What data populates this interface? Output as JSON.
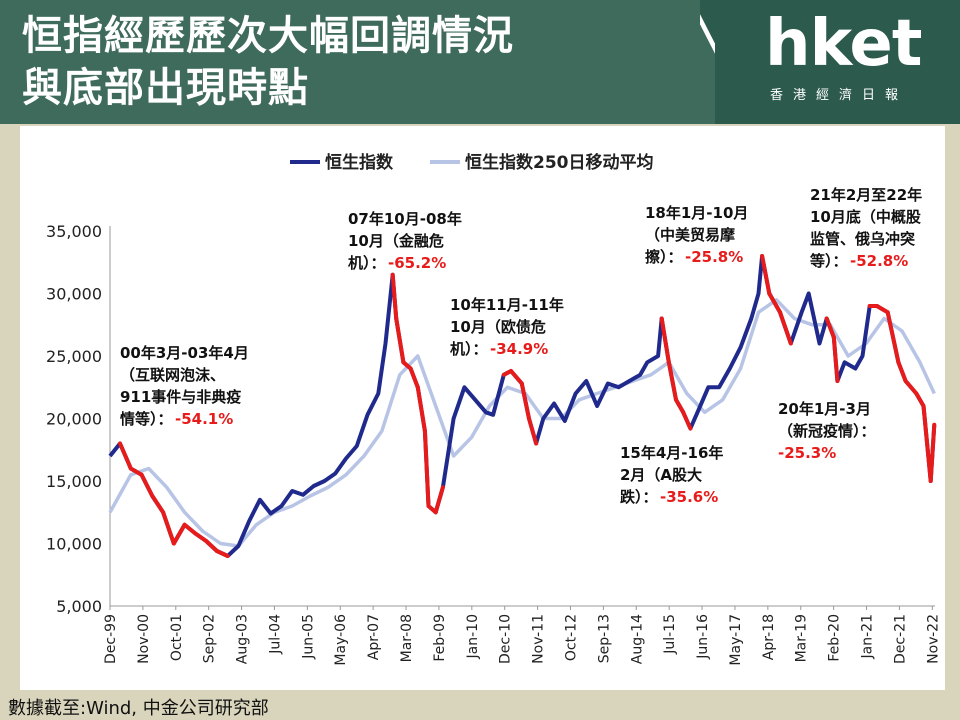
{
  "header": {
    "title_line1": "恒指經歷歷次大幅回調情況",
    "title_line2": "與底部出現時點",
    "logo_text": "hket",
    "logo_sub": "香港經濟日報"
  },
  "source": "數據截至:Wind, 中金公司研究部",
  "colors": {
    "header_bg": "#3f6b5d",
    "logo_bg": "#2c5a4c",
    "index_line": "#1f2a8c",
    "drawdown_line": "#e81b1b",
    "ma_line": "#b7c4e6",
    "annotation_red": "#e81b1b"
  },
  "chart_data": {
    "type": "line",
    "legend": [
      "恒生指数",
      "恒生指数250日移动平均"
    ],
    "ylim": [
      5000,
      35000
    ],
    "y_ticks": [
      "5,000",
      "10,000",
      "15,000",
      "20,000",
      "25,000",
      "30,000",
      "35,000"
    ],
    "x_ticks": [
      "Dec-99",
      "Nov-00",
      "Oct-01",
      "Sep-02",
      "Aug-03",
      "Jul-04",
      "Jun-05",
      "May-06",
      "Apr-07",
      "Mar-08",
      "Feb-09",
      "Jan-10",
      "Dec-10",
      "Nov-11",
      "Oct-12",
      "Sep-13",
      "Aug-14",
      "Jul-15",
      "Jun-16",
      "May-17",
      "Apr-18",
      "Mar-19",
      "Feb-20",
      "Jan-21",
      "Dec-21",
      "Nov-22"
    ],
    "series": [
      {
        "name": "恒生指数",
        "x": [
          1999.92,
          2000.2,
          2000.5,
          2000.8,
          2001.1,
          2001.4,
          2001.7,
          2002.0,
          2002.3,
          2002.6,
          2002.9,
          2003.2,
          2003.5,
          2003.8,
          2004.1,
          2004.4,
          2004.7,
          2005.0,
          2005.3,
          2005.6,
          2005.9,
          2006.2,
          2006.5,
          2006.8,
          2007.1,
          2007.4,
          2007.6,
          2007.8,
          2007.9,
          2008.1,
          2008.3,
          2008.5,
          2008.7,
          2008.8,
          2009.0,
          2009.2,
          2009.5,
          2009.8,
          2010.1,
          2010.4,
          2010.6,
          2010.9,
          2011.1,
          2011.4,
          2011.6,
          2011.8,
          2012.0,
          2012.3,
          2012.6,
          2012.9,
          2013.2,
          2013.5,
          2013.8,
          2014.1,
          2014.4,
          2014.7,
          2014.9,
          2015.2,
          2015.3,
          2015.5,
          2015.7,
          2015.9,
          2016.1,
          2016.3,
          2016.6,
          2016.9,
          2017.2,
          2017.5,
          2017.8,
          2018.0,
          2018.1,
          2018.3,
          2018.6,
          2018.9,
          2019.2,
          2019.4,
          2019.7,
          2019.9,
          2020.1,
          2020.2,
          2020.4,
          2020.7,
          2020.9,
          2021.1,
          2021.3,
          2021.6,
          2021.9,
          2022.1,
          2022.4,
          2022.6,
          2022.8,
          2022.9
        ],
        "y": [
          17000,
          18000,
          16000,
          15500,
          13800,
          12500,
          10000,
          11500,
          10800,
          10200,
          9400,
          9000,
          9800,
          11800,
          13500,
          12400,
          13000,
          14200,
          13900,
          14600,
          15000,
          15600,
          16800,
          17800,
          20300,
          22000,
          26000,
          31500,
          28000,
          24500,
          24000,
          22500,
          19000,
          13000,
          12500,
          14500,
          20000,
          22500,
          21500,
          20500,
          20300,
          23500,
          23800,
          22800,
          20000,
          18000,
          20000,
          21200,
          19800,
          22000,
          23000,
          21000,
          22800,
          22500,
          23000,
          23500,
          24500,
          25000,
          28000,
          24500,
          21500,
          20500,
          19200,
          20500,
          22500,
          22500,
          24000,
          25700,
          28000,
          30000,
          33000,
          30000,
          28500,
          26000,
          28500,
          30000,
          26000,
          28000,
          26500,
          23000,
          24500,
          24000,
          25000,
          29000,
          29000,
          28500,
          24500,
          23000,
          22000,
          21000,
          15000,
          19500
        ],
        "drawdown_periods": [
          [
            2000.2,
            2003.3
          ],
          [
            2007.8,
            2009.2
          ],
          [
            2010.8,
            2011.8
          ],
          [
            2015.3,
            2016.1
          ],
          [
            2018.1,
            2018.8
          ],
          [
            2020.0,
            2020.2
          ],
          [
            2021.1,
            2022.9
          ]
        ]
      },
      {
        "name": "恒生指数250日移动平均",
        "x": [
          1999.92,
          2000.5,
          2001.0,
          2001.5,
          2002.0,
          2002.5,
          2003.0,
          2003.5,
          2004.0,
          2004.5,
          2005.0,
          2005.5,
          2006.0,
          2006.5,
          2007.0,
          2007.5,
          2008.0,
          2008.5,
          2009.0,
          2009.5,
          2010.0,
          2010.5,
          2011.0,
          2011.5,
          2012.0,
          2012.5,
          2013.0,
          2013.5,
          2014.0,
          2014.5,
          2015.0,
          2015.5,
          2016.0,
          2016.5,
          2017.0,
          2017.5,
          2018.0,
          2018.5,
          2019.0,
          2019.5,
          2020.0,
          2020.5,
          2021.0,
          2021.5,
          2022.0,
          2022.5,
          2022.9
        ],
        "y": [
          12500,
          15500,
          16000,
          14500,
          12500,
          11000,
          10000,
          9800,
          11500,
          12500,
          13000,
          13800,
          14500,
          15500,
          17000,
          19000,
          23500,
          25000,
          21000,
          17000,
          18500,
          21000,
          22500,
          22000,
          20000,
          20000,
          21500,
          22000,
          22500,
          23000,
          23500,
          24500,
          22000,
          20500,
          21500,
          24000,
          28500,
          29500,
          28000,
          27500,
          27500,
          25000,
          26000,
          28000,
          27000,
          24500,
          22000
        ]
      }
    ],
    "annotations": [
      {
        "lines": [
          "00年3月-03年4月",
          "（互联网泡沫、",
          "911事件与非典疫",
          "情等）："
        ],
        "value": "-54.1%"
      },
      {
        "lines": [
          "07年10月-08年",
          "10月（金融危",
          "机）："
        ],
        "value": "-65.2%"
      },
      {
        "lines": [
          "10年11月-11年",
          "10月（欧债危",
          "机）："
        ],
        "value": "-34.9%"
      },
      {
        "lines": [
          "15年4月-16年",
          "2月（A股大",
          "跌）："
        ],
        "value": "-35.6%"
      },
      {
        "lines": [
          "18年1月-10月",
          "（中美贸易摩",
          "擦）："
        ],
        "value": "-25.8%"
      },
      {
        "lines": [
          "20年1月-3月",
          "（新冠疫情）："
        ],
        "value": "-25.3%"
      },
      {
        "lines": [
          "21年2月至22年",
          "10月底（中概股",
          "监管、俄乌冲突",
          "等）："
        ],
        "value": "-52.8%"
      }
    ]
  }
}
